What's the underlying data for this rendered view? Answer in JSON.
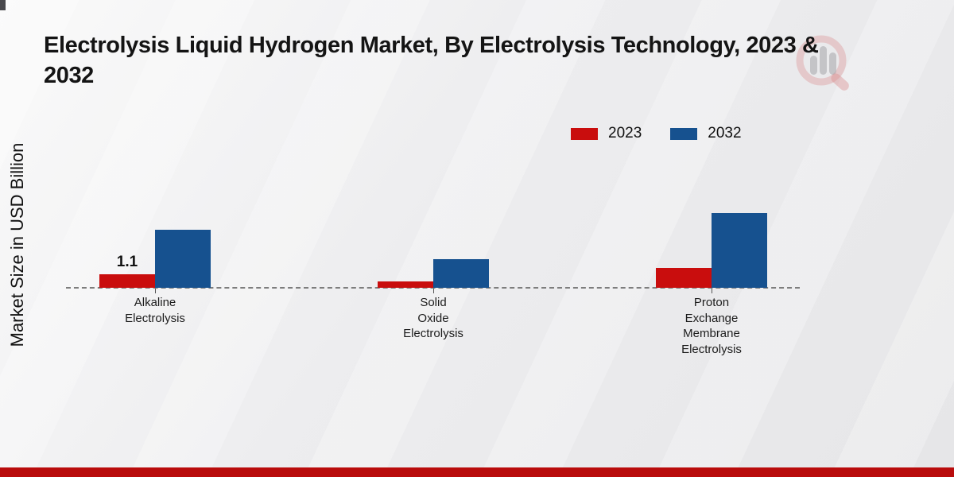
{
  "header": {
    "title": "Electrolysis Liquid Hydrogen Market, By Electrolysis Technology, 2023 & 2032"
  },
  "axes": {
    "y_label": "Market Size in USD Billion"
  },
  "legend": {
    "items": [
      {
        "label": "2023",
        "color": "#c90d0d"
      },
      {
        "label": "2032",
        "color": "#16518f"
      }
    ]
  },
  "chart_data": {
    "type": "bar",
    "title": "Electrolysis Liquid Hydrogen Market, By Electrolysis Technology, 2023 & 2032",
    "xlabel": "",
    "ylabel": "Market Size in USD Billion",
    "categories": [
      "Alkaline Electrolysis",
      "Solid Oxide Electrolysis",
      "Proton Exchange Membrane Electrolysis"
    ],
    "category_label_lines": [
      [
        "Alkaline",
        "Electrolysis"
      ],
      [
        "Solid",
        "Oxide",
        "Electrolysis"
      ],
      [
        "Proton",
        "Exchange",
        "Membrane",
        "Electrolysis"
      ]
    ],
    "series": [
      {
        "name": "2023",
        "color": "#c90d0d",
        "values": [
          1.1,
          0.5,
          1.6
        ]
      },
      {
        "name": "2032",
        "color": "#16518f",
        "values": [
          4.7,
          2.3,
          6.1
        ]
      }
    ],
    "data_labels": [
      {
        "series": "2023",
        "category_index": 0,
        "text": "1.1"
      }
    ],
    "ylim": [
      0,
      7
    ],
    "grid": false,
    "baseline_style": "dashed",
    "legend_position": "top-right"
  },
  "branding": {
    "logo_icon": "magnifier-bar-chart-watermark"
  },
  "colors": {
    "background": "#ebebed",
    "footer_band": "#b90c0c",
    "baseline": "#7d7d7d",
    "series_2023": "#c90d0d",
    "series_2032": "#16518f"
  }
}
